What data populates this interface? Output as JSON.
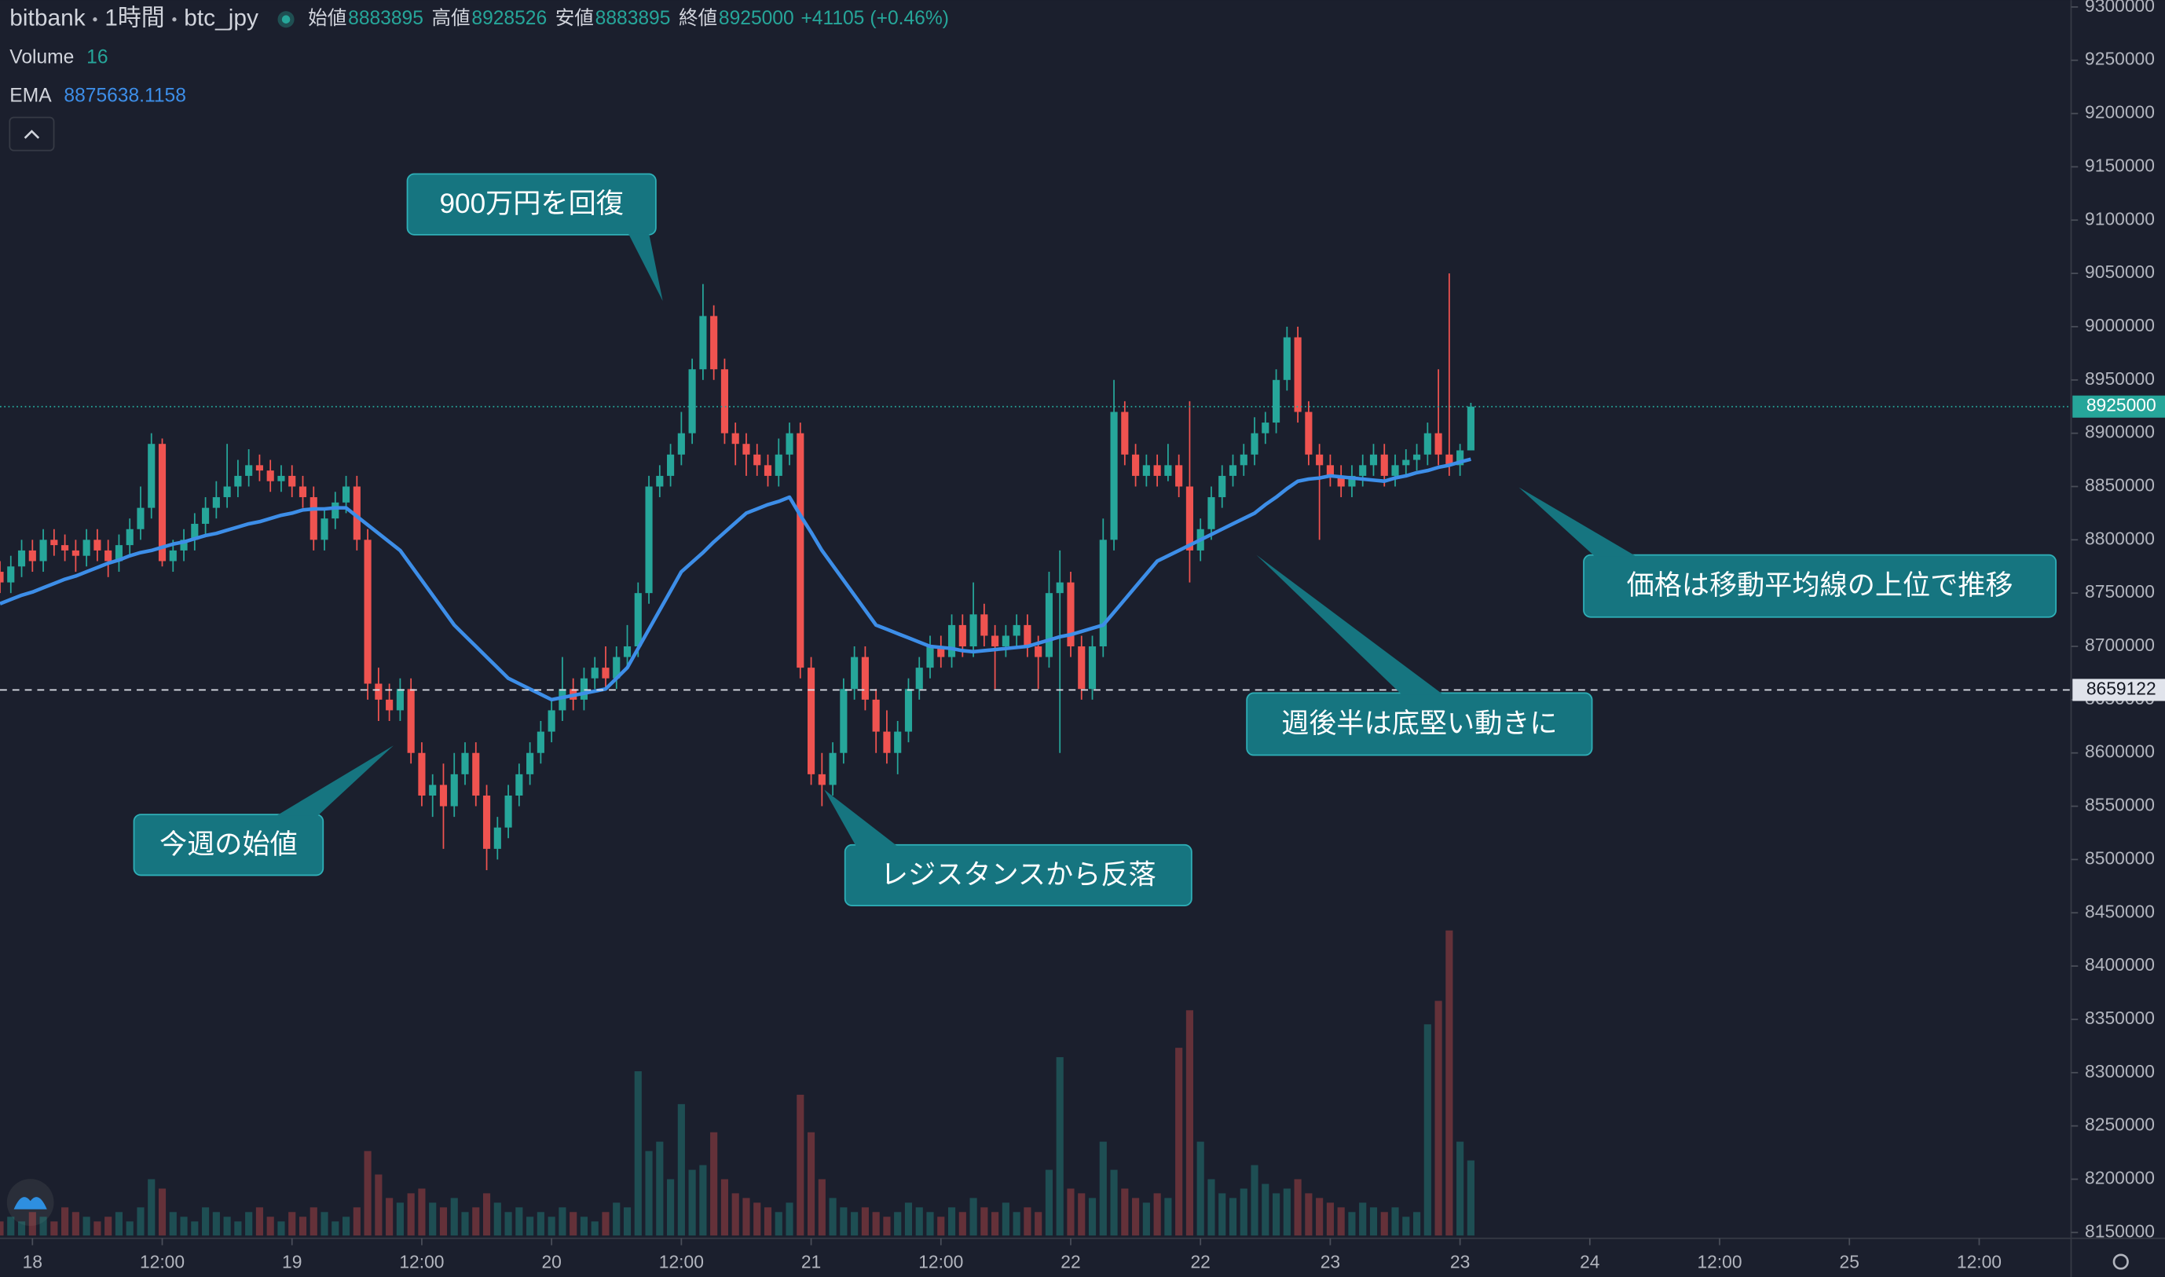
{
  "chart_data": {
    "type": "candlestick",
    "exchange": "bitbank",
    "interval": "1時間",
    "symbol": "btc_jpy",
    "ohlc_legend": {
      "open_label": "始値",
      "open": 8883895,
      "high_label": "高値",
      "high": 8928526,
      "low_label": "安値",
      "low": 8883895,
      "close_label": "終値",
      "close": 8925000,
      "change": {
        "value": 41105,
        "label": "+41105"
      },
      "change_pct": {
        "value": 0.46,
        "label": "(+0.46%)"
      }
    },
    "volume_legend": {
      "name": "Volume",
      "value": 16
    },
    "ema_legend": {
      "name": "EMA",
      "value": 8875638.1158
    },
    "up_color": "#26a69a",
    "down_color": "#ef5350",
    "open": [
      8770000,
      8760000,
      8775000,
      8790000,
      8780000,
      8800000,
      8795000,
      8790000,
      8785000,
      8800000,
      8790000,
      8780000,
      8795000,
      8810000,
      8830000,
      8890000,
      8780000,
      8790000,
      8800000,
      8815000,
      8830000,
      8840000,
      8850000,
      8860000,
      8870000,
      8865000,
      8855000,
      8860000,
      8850000,
      8840000,
      8800000,
      8820000,
      8835000,
      8850000,
      8800000,
      8665000,
      8650000,
      8640000,
      8660000,
      8600000,
      8560000,
      8570000,
      8550000,
      8580000,
      8600000,
      8560000,
      8510000,
      8530000,
      8560000,
      8580000,
      8600000,
      8620000,
      8640000,
      8660000,
      8650000,
      8670000,
      8680000,
      8670000,
      8690000,
      8700000,
      8750000,
      8850000,
      8860000,
      8880000,
      8900000,
      8960000,
      9010000,
      8960000,
      8900000,
      8890000,
      8880000,
      8870000,
      8860000,
      8880000,
      8900000,
      8680000,
      8580000,
      8570000,
      8600000,
      8660000,
      8690000,
      8650000,
      8620000,
      8600000,
      8620000,
      8660000,
      8680000,
      8700000,
      8690000,
      8720000,
      8700000,
      8730000,
      8710000,
      8700000,
      8710000,
      8720000,
      8700000,
      8690000,
      8750000,
      8760000,
      8700000,
      8660000,
      8700000,
      8800000,
      8920000,
      8880000,
      8860000,
      8870000,
      8860000,
      8870000,
      8850000,
      8790000,
      8810000,
      8840000,
      8860000,
      8870000,
      8880000,
      8900000,
      8910000,
      8950000,
      8990000,
      8920000,
      8880000,
      8870000,
      8860000,
      8850000,
      8860000,
      8870000,
      8880000,
      8860000,
      8870000,
      8875000,
      8880000,
      8900000,
      8880000,
      8870000,
      8883895
    ],
    "close": [
      8760000,
      8775000,
      8790000,
      8780000,
      8800000,
      8795000,
      8790000,
      8785000,
      8800000,
      8790000,
      8780000,
      8795000,
      8810000,
      8830000,
      8890000,
      8780000,
      8790000,
      8800000,
      8815000,
      8830000,
      8840000,
      8850000,
      8860000,
      8870000,
      8865000,
      8855000,
      8860000,
      8850000,
      8840000,
      8800000,
      8820000,
      8835000,
      8850000,
      8800000,
      8665000,
      8650000,
      8640000,
      8660000,
      8600000,
      8560000,
      8570000,
      8550000,
      8580000,
      8600000,
      8560000,
      8510000,
      8530000,
      8560000,
      8580000,
      8600000,
      8620000,
      8640000,
      8660000,
      8650000,
      8670000,
      8680000,
      8670000,
      8690000,
      8700000,
      8750000,
      8850000,
      8860000,
      8880000,
      8900000,
      8960000,
      9010000,
      8960000,
      8900000,
      8890000,
      8880000,
      8870000,
      8860000,
      8880000,
      8900000,
      8680000,
      8580000,
      8570000,
      8600000,
      8660000,
      8690000,
      8650000,
      8620000,
      8600000,
      8620000,
      8660000,
      8680000,
      8700000,
      8690000,
      8720000,
      8700000,
      8730000,
      8710000,
      8700000,
      8710000,
      8720000,
      8700000,
      8690000,
      8750000,
      8760000,
      8700000,
      8660000,
      8700000,
      8800000,
      8920000,
      8880000,
      8860000,
      8870000,
      8860000,
      8870000,
      8850000,
      8790000,
      8810000,
      8840000,
      8860000,
      8870000,
      8880000,
      8900000,
      8910000,
      8950000,
      8990000,
      8920000,
      8880000,
      8870000,
      8860000,
      8850000,
      8860000,
      8870000,
      8880000,
      8860000,
      8870000,
      8875000,
      8880000,
      8900000,
      8880000,
      8870000,
      8883895,
      8925000
    ],
    "high": [
      8780000,
      8785000,
      8800000,
      8800000,
      8810000,
      8810000,
      8805000,
      8800000,
      8810000,
      8810000,
      8800000,
      8805000,
      8820000,
      8850000,
      8900000,
      8895000,
      8800000,
      8810000,
      8825000,
      8840000,
      8855000,
      8890000,
      8875000,
      8885000,
      8880000,
      8875000,
      8870000,
      8870000,
      8860000,
      8850000,
      8830000,
      8845000,
      8860000,
      8860000,
      8810000,
      8680000,
      8665000,
      8670000,
      8670000,
      8610000,
      8580000,
      8590000,
      8600000,
      8610000,
      8610000,
      8570000,
      8540000,
      8570000,
      8590000,
      8610000,
      8630000,
      8650000,
      8690000,
      8670000,
      8680000,
      8690000,
      8700000,
      8700000,
      8720000,
      8760000,
      8860000,
      8870000,
      8890000,
      8920000,
      8970000,
      9040000,
      9020000,
      8970000,
      8910000,
      8900000,
      8890000,
      8880000,
      8895000,
      8910000,
      8910000,
      8690000,
      8600000,
      8610000,
      8670000,
      8700000,
      8700000,
      8660000,
      8640000,
      8630000,
      8670000,
      8690000,
      8710000,
      8710000,
      8730000,
      8730000,
      8760000,
      8740000,
      8720000,
      8720000,
      8730000,
      8730000,
      8710000,
      8770000,
      8790000,
      8770000,
      8710000,
      8710000,
      8820000,
      8950000,
      8930000,
      8890000,
      8880000,
      8880000,
      8890000,
      8880000,
      8930000,
      8820000,
      8850000,
      8870000,
      8880000,
      8890000,
      8915000,
      8920000,
      8960000,
      9000000,
      9000000,
      8930000,
      8890000,
      8880000,
      8870000,
      8870000,
      8880000,
      8890000,
      8890000,
      8880000,
      8885000,
      8890000,
      8910000,
      8960000,
      9050000,
      8890000,
      8928526
    ],
    "low": [
      8750000,
      8750000,
      8765000,
      8770000,
      8770000,
      8785000,
      8780000,
      8770000,
      8775000,
      8780000,
      8765000,
      8770000,
      8785000,
      8800000,
      8820000,
      8775000,
      8770000,
      8780000,
      8790000,
      8805000,
      8820000,
      8830000,
      8840000,
      8850000,
      8855000,
      8845000,
      8845000,
      8840000,
      8830000,
      8790000,
      8790000,
      8810000,
      8825000,
      8790000,
      8650000,
      8630000,
      8630000,
      8630000,
      8590000,
      8550000,
      8540000,
      8510000,
      8540000,
      8570000,
      8550000,
      8490000,
      8500000,
      8520000,
      8550000,
      8570000,
      8590000,
      8610000,
      8630000,
      8640000,
      8640000,
      8660000,
      8660000,
      8660000,
      8680000,
      8690000,
      8740000,
      8840000,
      8850000,
      8870000,
      8890000,
      8950000,
      8950000,
      8890000,
      8870000,
      8860000,
      8860000,
      8850000,
      8850000,
      8870000,
      8670000,
      8570000,
      8550000,
      8560000,
      8590000,
      8650000,
      8640000,
      8600000,
      8590000,
      8580000,
      8610000,
      8650000,
      8670000,
      8680000,
      8680000,
      8690000,
      8690000,
      8700000,
      8660000,
      8690000,
      8700000,
      8690000,
      8660000,
      8680000,
      8600000,
      8690000,
      8650000,
      8650000,
      8690000,
      8790000,
      8870000,
      8850000,
      8850000,
      8850000,
      8855000,
      8840000,
      8760000,
      8780000,
      8800000,
      8830000,
      8850000,
      8860000,
      8870000,
      8890000,
      8900000,
      8940000,
      8910000,
      8870000,
      8800000,
      8850000,
      8840000,
      8840000,
      8850000,
      8860000,
      8850000,
      8850000,
      8860000,
      8865000,
      8870000,
      8870000,
      8860000,
      8860000,
      8883895
    ],
    "volume": [
      3,
      4,
      3,
      5,
      4,
      3,
      6,
      5,
      4,
      3,
      4,
      5,
      3,
      6,
      12,
      10,
      5,
      4,
      3,
      6,
      5,
      4,
      3,
      5,
      6,
      4,
      3,
      5,
      4,
      6,
      5,
      3,
      4,
      6,
      18,
      13,
      8,
      7,
      9,
      10,
      7,
      6,
      8,
      5,
      6,
      9,
      7,
      5,
      6,
      4,
      5,
      4,
      6,
      5,
      4,
      3,
      5,
      7,
      6,
      35,
      18,
      20,
      12,
      28,
      14,
      15,
      22,
      12,
      9,
      8,
      7,
      6,
      5,
      7,
      30,
      22,
      12,
      8,
      6,
      5,
      6,
      5,
      4,
      5,
      7,
      6,
      5,
      4,
      6,
      5,
      8,
      6,
      5,
      7,
      5,
      6,
      5,
      14,
      38,
      10,
      9,
      8,
      20,
      14,
      10,
      8,
      7,
      9,
      8,
      40,
      48,
      20,
      12,
      9,
      8,
      10,
      15,
      11,
      9,
      10,
      12,
      9,
      8,
      7,
      6,
      5,
      7,
      6,
      5,
      6,
      4,
      5,
      45,
      50,
      65,
      20,
      16
    ],
    "ema": {
      "color": "#3d8ee8",
      "values": [
        8740000,
        8744000,
        8748000,
        8751000,
        8755000,
        8759000,
        8763000,
        8766000,
        8770000,
        8774000,
        8778000,
        8781000,
        8785000,
        8788000,
        8790000,
        8793000,
        8796000,
        8798000,
        8801000,
        8804000,
        8806000,
        8809000,
        8812000,
        8815000,
        8817000,
        8820000,
        8823000,
        8825000,
        8828000,
        8829000,
        8829000,
        8830000,
        8830000,
        8822000,
        8814000,
        8806000,
        8798000,
        8790000,
        8776000,
        8762000,
        8748000,
        8734000,
        8720000,
        8710000,
        8700000,
        8690000,
        8680000,
        8670000,
        8665000,
        8660000,
        8655000,
        8650000,
        8652000,
        8654000,
        8656000,
        8658000,
        8660000,
        8670000,
        8680000,
        8698000,
        8716000,
        8734000,
        8752000,
        8770000,
        8779000,
        8788000,
        8798000,
        8807000,
        8816000,
        8825000,
        8829000,
        8833000,
        8836000,
        8840000,
        8823000,
        8807000,
        8790000,
        8776000,
        8762000,
        8748000,
        8734000,
        8720000,
        8716000,
        8712000,
        8708000,
        8704000,
        8700000,
        8699000,
        8698000,
        8696000,
        8695000,
        8696000,
        8697000,
        8698000,
        8699000,
        8700000,
        8703000,
        8706000,
        8709000,
        8711000,
        8714000,
        8717000,
        8720000,
        8732000,
        8744000,
        8756000,
        8768000,
        8780000,
        8785000,
        8790000,
        8795000,
        8800000,
        8805000,
        8810000,
        8815000,
        8820000,
        8825000,
        8833000,
        8840000,
        8848000,
        8855000,
        8857000,
        8858000,
        8860000,
        8859000,
        8858000,
        8857000,
        8856000,
        8855000,
        8858000,
        8860000,
        8863000,
        8865000,
        8868000,
        8870000,
        8873000,
        8875638.1158
      ]
    },
    "ylim": [
      8150000,
      9300000
    ],
    "yticks": [
      8150000,
      8200000,
      8250000,
      8300000,
      8350000,
      8400000,
      8450000,
      8500000,
      8550000,
      8600000,
      8650000,
      8700000,
      8750000,
      8800000,
      8850000,
      8900000,
      8950000,
      9000000,
      9050000,
      9100000,
      9150000,
      9200000,
      9250000,
      9300000
    ],
    "xlim": [
      0,
      191.5
    ],
    "xticks": [
      {
        "value": 3,
        "label": "18"
      },
      {
        "value": 15,
        "label": "12:00"
      },
      {
        "value": 27,
        "label": "19"
      },
      {
        "value": 39,
        "label": "12:00"
      },
      {
        "value": 51,
        "label": "20"
      },
      {
        "value": 63,
        "label": "12:00"
      },
      {
        "value": 75,
        "label": "21"
      },
      {
        "value": 87,
        "label": "12:00"
      },
      {
        "value": 99,
        "label": "22"
      },
      {
        "value": 111,
        "label": "22"
      },
      {
        "value": 123,
        "label": "23"
      },
      {
        "value": 135,
        "label": "23"
      },
      {
        "value": 147,
        "label": "24"
      },
      {
        "value": 159,
        "label": "12:00"
      },
      {
        "value": 171,
        "label": "25"
      },
      {
        "value": 183,
        "label": "12:00"
      }
    ],
    "last_price": 8925000,
    "reference_line": 8659122,
    "annotations": [
      "900万円を回復",
      "今週の始値",
      "レジスタンスから反落",
      "週後半は底堅い動きに",
      "価格は移動平均線の上位で推移"
    ]
  }
}
